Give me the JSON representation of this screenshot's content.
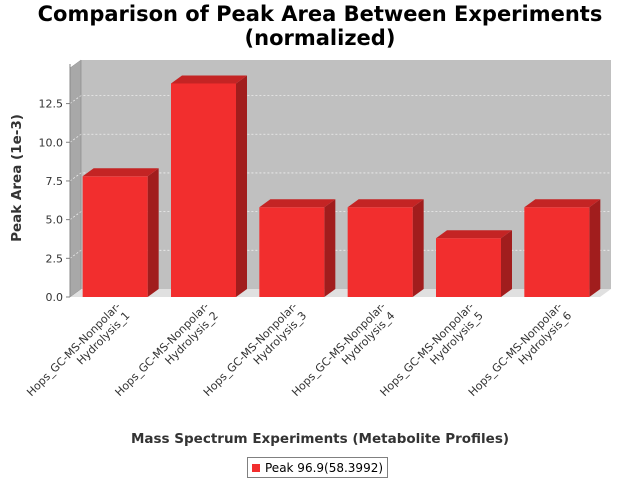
{
  "chart_data": {
    "type": "bar",
    "title_line1": "Comparison of Peak Area Between Experiments",
    "title_line2": "(normalized)",
    "xlabel": "Mass Spectrum Experiments (Metabolite Profiles)",
    "ylabel": "Peak Area (1e-3)",
    "categories": [
      [
        "Hops_GC-MS-Nonpolar-",
        "Hydrolysis_1"
      ],
      [
        "Hops_GC-MS-Nonpolar-",
        "Hydrolysis_2"
      ],
      [
        "Hops_GC-MS-Nonpolar-",
        "Hydrolysis_3"
      ],
      [
        "Hops_GC-MS-Nonpolar-",
        "Hydrolysis_4"
      ],
      [
        "Hops_GC-MS-Nonpolar-",
        "Hydrolysis_5"
      ],
      [
        "Hops_GC-MS-Nonpolar-",
        "Hydrolysis_6"
      ]
    ],
    "series": [
      {
        "name": "Peak 96.9(58.3992)",
        "values": [
          7.8,
          13.8,
          5.8,
          5.8,
          3.8,
          5.8
        ]
      }
    ],
    "yticks": [
      0.0,
      2.5,
      5.0,
      7.5,
      10.0,
      12.5
    ],
    "ytick_labels": [
      "0.0",
      "2.5",
      "5.0",
      "7.5",
      "10.0",
      "12.5"
    ],
    "ylim": [
      0,
      14.8
    ],
    "grid": true,
    "legend_position": "bottom",
    "colors": {
      "bar_face": "#f22e2e",
      "bar_top": "#c42424",
      "bar_side": "#a11d1d",
      "plot_bg": "#c0c0c0",
      "floor": "#e0e0e0"
    }
  }
}
